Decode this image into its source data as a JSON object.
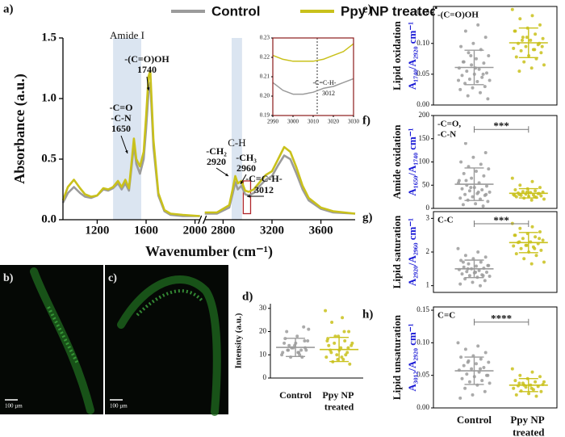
{
  "chart_data": [
    {
      "type": "line",
      "label": "a)",
      "xlabel": "Wavenumber (cm⁻¹)",
      "ylabel": "Absorbance (a.u.)",
      "x": [
        920,
        960,
        1010,
        1060,
        1100,
        1150,
        1200,
        1250,
        1290,
        1330,
        1370,
        1400,
        1430,
        1460,
        1480,
        1500,
        1520,
        1550,
        1580,
        1600,
        1620,
        1634,
        1660,
        1700,
        1750,
        1800,
        1900,
        2040,
        2300,
        2650,
        2750,
        2850,
        2880,
        2900,
        2920,
        2950,
        2980,
        3010,
        3050,
        3100,
        3150,
        3200,
        3250,
        3300,
        3350,
        3400,
        3450,
        3500,
        3600,
        3700,
        3880
      ],
      "series": [
        {
          "name": "Control",
          "color": "#9b9b9b",
          "values": [
            0.14,
            0.22,
            0.27,
            0.22,
            0.19,
            0.18,
            0.2,
            0.25,
            0.24,
            0.26,
            0.3,
            0.25,
            0.3,
            0.24,
            0.42,
            0.62,
            0.46,
            0.38,
            0.5,
            0.75,
            1.05,
            1.13,
            0.6,
            0.2,
            0.07,
            0.04,
            0.03,
            0.03,
            null,
            0.05,
            0.05,
            0.1,
            0.22,
            0.31,
            0.25,
            0.28,
            0.21,
            0.2,
            0.22,
            0.28,
            0.33,
            0.36,
            0.45,
            0.53,
            0.5,
            0.38,
            0.25,
            0.16,
            0.09,
            0.06,
            0.05
          ]
        },
        {
          "name": "Ppy NP treated",
          "color": "#c9c11b",
          "values": [
            0.16,
            0.27,
            0.33,
            0.26,
            0.21,
            0.19,
            0.2,
            0.26,
            0.25,
            0.27,
            0.32,
            0.27,
            0.33,
            0.26,
            0.46,
            0.67,
            0.5,
            0.44,
            0.56,
            0.85,
            1.18,
            1.23,
            0.66,
            0.22,
            0.08,
            0.05,
            0.04,
            0.03,
            null,
            0.06,
            0.06,
            0.12,
            0.26,
            0.36,
            0.3,
            0.32,
            0.24,
            0.23,
            0.25,
            0.31,
            0.37,
            0.4,
            0.5,
            0.6,
            0.56,
            0.43,
            0.28,
            0.18,
            0.1,
            0.07,
            0.05
          ]
        }
      ],
      "xlim": [
        920,
        3880
      ],
      "xbreak": [
        2040,
        2650
      ],
      "xticks": [
        1200,
        1600,
        2000,
        2800,
        3200,
        3600
      ],
      "ylim": [
        0,
        1.5
      ],
      "yticks": [
        {
          "value": 0,
          "label": "0.0"
        },
        0.5,
        {
          "value": 1,
          "label": "1.0"
        },
        1.5
      ],
      "bands": [
        {
          "label": "Amide I",
          "x": [
            1330,
            1560
          ]
        },
        {
          "label": "C-H",
          "x": [
            2870,
            2955
          ]
        }
      ],
      "highlight": {
        "x": [
          2965,
          3025
        ],
        "y": [
          0.05,
          0.32
        ]
      },
      "annotations": [
        "-(C=O)OH",
        "1740",
        "-C=O",
        "-C-N",
        "1650",
        "-CH₂",
        "2920",
        "-CH₃",
        "2960",
        "-C=C-H-",
        "3012"
      ]
    },
    {
      "type": "line",
      "x": [
        2990,
        2995,
        3000,
        3005,
        3010,
        3015,
        3020,
        3025,
        3030
      ],
      "series": [
        {
          "color": "#9b9b9b",
          "values": [
            0.207,
            0.203,
            0.201,
            0.201,
            0.202,
            0.204,
            0.205,
            0.207,
            0.209
          ]
        },
        {
          "color": "#c9c11b",
          "values": [
            0.221,
            0.219,
            0.218,
            0.218,
            0.218,
            0.219,
            0.221,
            0.223,
            0.227
          ]
        }
      ],
      "xlim": [
        2990,
        3030
      ],
      "xticks": [
        2990,
        3000,
        3010,
        3020,
        3030
      ],
      "ylim": [
        0.19,
        0.23
      ],
      "yticks": [
        0.19,
        {
          "value": 0.2,
          "label": "0.20"
        },
        0.21,
        0.22,
        0.23
      ],
      "vline": 3012,
      "annotations": [
        "-C=C-H-",
        "3012"
      ]
    },
    {
      "type": "image",
      "label": "b)",
      "scale_bar": "100 µm"
    },
    {
      "type": "image",
      "label": "c)",
      "scale_bar": "100 µm"
    },
    {
      "type": "strip",
      "label": "d)",
      "ylabel": "Intensity (a.u.)",
      "categories": [
        "Control",
        "Ppy NP treated"
      ],
      "ylim": [
        0,
        32
      ],
      "yticks": [
        0,
        10,
        20,
        30
      ],
      "series": [
        {
          "color": "#9b9b9b",
          "values": [
            10,
            11,
            12,
            13,
            14,
            15,
            12,
            9,
            16,
            18,
            20,
            22,
            13,
            11,
            10,
            14,
            12,
            15,
            17,
            9,
            13,
            21,
            11,
            12,
            16
          ],
          "mean": 13.2,
          "sd": 3.9
        },
        {
          "color": "#c9c11b",
          "values": [
            29,
            26,
            24,
            20,
            18,
            17,
            16,
            15,
            14,
            13,
            12,
            11,
            10,
            9,
            8,
            7,
            6,
            12,
            14,
            10,
            18,
            15,
            9,
            11,
            13,
            8,
            16,
            20
          ],
          "mean": 12.3,
          "sd": 5.2
        }
      ]
    },
    {
      "type": "strip",
      "label": "e)",
      "ylabel": "Lipid oxidation",
      "ylabel2": "A₁₇₄₀/A₂₉₂₀ cm⁻¹",
      "note": [
        "-(C=O)OH"
      ],
      "ylim": [
        0,
        0.16
      ],
      "yticks": [
        {
          "value": 0,
          "label": "0.00"
        },
        0.05,
        {
          "value": 0.1,
          "label": "0.10"
        },
        0.15
      ],
      "series": [
        {
          "color": "#9b9b9b",
          "values": [
            0.145,
            0.13,
            0.12,
            0.11,
            0.1,
            0.095,
            0.09,
            0.085,
            0.08,
            0.075,
            0.07,
            0.068,
            0.065,
            0.06,
            0.058,
            0.055,
            0.052,
            0.05,
            0.048,
            0.045,
            0.042,
            0.04,
            0.038,
            0.035,
            0.03,
            0.028,
            0.025,
            0.02,
            0.015,
            0.01,
            0.06,
            0.07,
            0.05,
            0.08,
            0.04
          ],
          "mean": 0.061,
          "sd": 0.028
        },
        {
          "color": "#c9c11b",
          "values": [
            0.155,
            0.145,
            0.14,
            0.13,
            0.125,
            0.12,
            0.115,
            0.11,
            0.108,
            0.105,
            0.1,
            0.098,
            0.095,
            0.092,
            0.09,
            0.088,
            0.085,
            0.08,
            0.078,
            0.075,
            0.07,
            0.065,
            0.06,
            0.055,
            0.1,
            0.11,
            0.12,
            0.09,
            0.105,
            0.095
          ],
          "mean": 0.101,
          "sd": 0.024
        }
      ]
    },
    {
      "type": "strip",
      "label": "f)",
      "ylabel": "Amide oxidation",
      "ylabel2": "A₁₆₅₀/A₁₇₄₀ cm⁻¹",
      "note": [
        "-C=O,",
        "-C-N"
      ],
      "significance": "***",
      "ylim": [
        0,
        200
      ],
      "yticks": [
        0,
        50,
        100,
        150,
        200
      ],
      "series": [
        {
          "color": "#9b9b9b",
          "values": [
            175,
            160,
            140,
            120,
            110,
            100,
            95,
            90,
            85,
            80,
            75,
            70,
            65,
            60,
            55,
            50,
            48,
            45,
            42,
            40,
            38,
            35,
            32,
            30,
            28,
            25,
            22,
            20,
            18,
            15,
            10,
            8,
            5,
            45,
            55,
            35,
            60,
            30
          ],
          "mean": 52,
          "sd": 35
        },
        {
          "color": "#c9c11b",
          "values": [
            65,
            58,
            50,
            45,
            42,
            40,
            38,
            36,
            35,
            34,
            33,
            32,
            31,
            30,
            29,
            28,
            27,
            26,
            25,
            24,
            22,
            20,
            18,
            30,
            32,
            35,
            28,
            25
          ],
          "mean": 32.5,
          "sd": 10
        }
      ]
    },
    {
      "type": "strip",
      "label": "g)",
      "ylabel": "Lipid saturation",
      "ylabel2": "A₂₉₂₀/A₂₉₆₀ cm⁻¹",
      "note": [
        "C-C"
      ],
      "significance": "***",
      "ylim": [
        0.8,
        3.2
      ],
      "yticks": [
        1,
        2,
        3
      ],
      "series": [
        {
          "color": "#9b9b9b",
          "values": [
            2.1,
            2.0,
            1.9,
            1.85,
            1.8,
            1.75,
            1.7,
            1.65,
            1.6,
            1.58,
            1.55,
            1.52,
            1.5,
            1.48,
            1.45,
            1.42,
            1.4,
            1.38,
            1.35,
            1.32,
            1.3,
            1.28,
            1.25,
            1.2,
            1.15,
            1.1,
            1.05,
            1.0,
            1.5,
            1.6,
            1.4,
            1.7,
            1.3
          ],
          "mean": 1.5,
          "sd": 0.26
        },
        {
          "color": "#c9c11b",
          "values": [
            2.85,
            2.75,
            2.7,
            2.6,
            2.55,
            2.5,
            2.45,
            2.4,
            2.35,
            2.3,
            2.28,
            2.25,
            2.2,
            2.18,
            2.15,
            2.1,
            2.05,
            2.0,
            1.95,
            1.9,
            1.8,
            1.7,
            1.65,
            2.3,
            2.4,
            2.2,
            2.5,
            2.1
          ],
          "mean": 2.28,
          "sd": 0.3
        }
      ]
    },
    {
      "type": "strip",
      "label": "h)",
      "ylabel": "Lipid unsaturation",
      "ylabel2": "A₃₀₁₂/A₂₉₂₀ cm⁻¹",
      "note": [
        "C=C"
      ],
      "significance": "****",
      "categories": [
        "Control",
        "Ppy NP treated"
      ],
      "ylim": [
        0,
        0.155
      ],
      "yticks": [
        {
          "value": 0,
          "label": "0.00"
        },
        0.05,
        {
          "value": 0.1,
          "label": "0.10"
        },
        0.15
      ],
      "series": [
        {
          "color": "#9b9b9b",
          "values": [
            0.1,
            0.095,
            0.09,
            0.085,
            0.08,
            0.078,
            0.075,
            0.072,
            0.07,
            0.068,
            0.065,
            0.062,
            0.06,
            0.058,
            0.055,
            0.052,
            0.05,
            0.048,
            0.045,
            0.042,
            0.04,
            0.038,
            0.035,
            0.03,
            0.025,
            0.02,
            0.015,
            0.06,
            0.07,
            0.05
          ],
          "mean": 0.057,
          "sd": 0.021
        },
        {
          "color": "#c9c11b",
          "values": [
            0.06,
            0.055,
            0.05,
            0.048,
            0.045,
            0.042,
            0.04,
            0.038,
            0.036,
            0.035,
            0.034,
            0.033,
            0.032,
            0.03,
            0.028,
            0.026,
            0.025,
            0.022,
            0.02,
            0.018,
            0.035,
            0.04,
            0.03,
            0.038
          ],
          "mean": 0.035,
          "sd": 0.01
        }
      ]
    }
  ]
}
